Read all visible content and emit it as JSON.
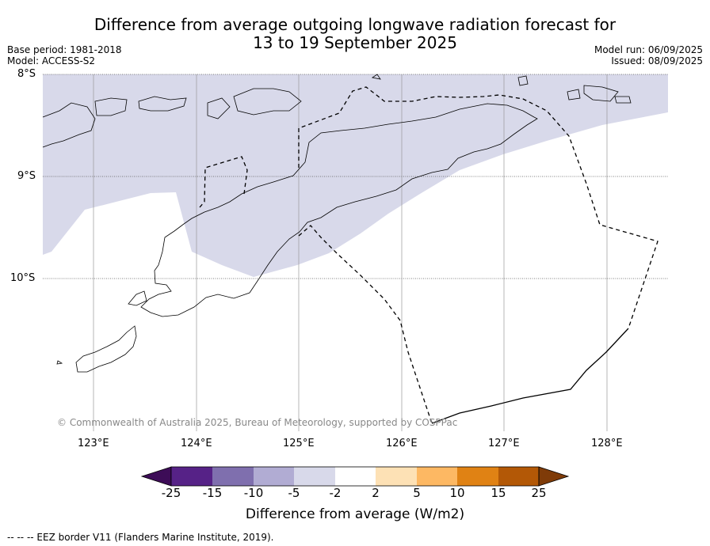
{
  "header": {
    "title_line1": "Difference from average outgoing longwave radiation forecast for",
    "title_line2": "13 to 19 September 2025",
    "base_period": "Base period: 1981-2018",
    "model": "Model: ACCESS-S2",
    "model_run": "Model run: 06/09/2025",
    "issued": "Issued: 08/09/2025"
  },
  "map": {
    "lat_labels": [
      "8°S",
      "9°S",
      "10°S"
    ],
    "lon_labels": [
      "123°E",
      "124°E",
      "125°E",
      "126°E",
      "127°E",
      "128°E"
    ],
    "copyright": "© Commonwealth of Australia 2025, Bureau of Meteorology, supported by COSPPac",
    "anomaly_fill_color": "#d8d9ea"
  },
  "colorbar": {
    "title": "Difference from average (W/m2)",
    "tick_labels": [
      "-25",
      "-15",
      "-10",
      "-5",
      "-2",
      "2",
      "5",
      "10",
      "15",
      "25"
    ],
    "colors": [
      "#3d0c57",
      "#562287",
      "#7f6fae",
      "#b1acd3",
      "#d8d9ea",
      "#ffffff",
      "#fde1b5",
      "#fdb863",
      "#e08214",
      "#b35806",
      "#7f3b08"
    ]
  },
  "footer": {
    "legend_note": "--  --  -- EEZ border V11 (Flanders Marine Institute, 2019)."
  }
}
